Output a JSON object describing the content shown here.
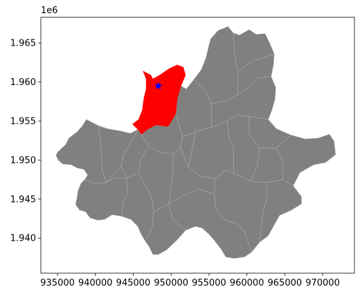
{
  "chart_data": {
    "type": "choropleth-map",
    "title": "",
    "xlabel": "",
    "ylabel": "",
    "y_offset_label": "1e6",
    "xlim": [
      932800,
      974200
    ],
    "ylim": [
      1935500,
      1968300
    ],
    "x_ticks": [
      935000,
      940000,
      945000,
      950000,
      955000,
      960000,
      965000,
      970000
    ],
    "y_ticks": [
      1.94,
      1.945,
      1.95,
      1.955,
      1.96,
      1.965
    ],
    "x_tick_labels": [
      "935000",
      "940000",
      "945000",
      "950000",
      "955000",
      "960000",
      "965000",
      "970000"
    ],
    "y_tick_labels": [
      "1.940",
      "1.945",
      "1.950",
      "1.955",
      "1.960",
      "1.965"
    ],
    "grid": false,
    "legend": "none",
    "base_color": "#808080",
    "highlight_color": "#ff0000",
    "marker_color": "#0000ff",
    "marker": {
      "shape": "star",
      "x": 948300,
      "y": 1959500
    },
    "highlighted_region": [
      [
        947600,
        1960400
      ],
      [
        948500,
        1960900
      ],
      [
        949700,
        1961700
      ],
      [
        950800,
        1962200
      ],
      [
        951600,
        1961900
      ],
      [
        951900,
        1960900
      ],
      [
        951300,
        1959500
      ],
      [
        950800,
        1957800
      ],
      [
        950600,
        1955900
      ],
      [
        949600,
        1954300
      ],
      [
        948000,
        1954500
      ],
      [
        946800,
        1953900
      ],
      [
        946100,
        1953300
      ],
      [
        945600,
        1953900
      ],
      [
        944900,
        1954600
      ],
      [
        945700,
        1955200
      ],
      [
        946200,
        1956400
      ],
      [
        946400,
        1957900
      ],
      [
        946700,
        1959100
      ],
      [
        946700,
        1960400
      ],
      [
        946300,
        1961400
      ],
      [
        947300,
        1960900
      ]
    ],
    "city_outline": [
      [
        935000,
        1951000
      ],
      [
        936100,
        1952000
      ],
      [
        936500,
        1952800
      ],
      [
        937600,
        1953600
      ],
      [
        938300,
        1954400
      ],
      [
        938800,
        1955200
      ],
      [
        939400,
        1954900
      ],
      [
        940400,
        1954400
      ],
      [
        941600,
        1954000
      ],
      [
        943400,
        1953700
      ],
      [
        944600,
        1953400
      ],
      [
        945600,
        1953900
      ],
      [
        946100,
        1953300
      ],
      [
        946800,
        1953900
      ],
      [
        948000,
        1954500
      ],
      [
        949600,
        1954300
      ],
      [
        950600,
        1955900
      ],
      [
        950800,
        1957800
      ],
      [
        951300,
        1959500
      ],
      [
        952000,
        1959100
      ],
      [
        953000,
        1960300
      ],
      [
        954000,
        1961600
      ],
      [
        954600,
        1963100
      ],
      [
        955200,
        1965500
      ],
      [
        956200,
        1966600
      ],
      [
        957500,
        1967100
      ],
      [
        958200,
        1966300
      ],
      [
        959000,
        1966000
      ],
      [
        960300,
        1966700
      ],
      [
        961200,
        1966100
      ],
      [
        962400,
        1966200
      ],
      [
        963000,
        1965000
      ],
      [
        963600,
        1963600
      ],
      [
        963500,
        1962200
      ],
      [
        963200,
        1960700
      ],
      [
        963800,
        1959300
      ],
      [
        963700,
        1957800
      ],
      [
        963300,
        1956400
      ],
      [
        962800,
        1955200
      ],
      [
        963900,
        1954000
      ],
      [
        965800,
        1953200
      ],
      [
        967700,
        1952700
      ],
      [
        969400,
        1952800
      ],
      [
        970900,
        1953300
      ],
      [
        971500,
        1952400
      ],
      [
        971700,
        1950700
      ],
      [
        970400,
        1949700
      ],
      [
        968800,
        1949400
      ],
      [
        967000,
        1948400
      ],
      [
        966100,
        1946700
      ],
      [
        967200,
        1945300
      ],
      [
        967200,
        1944400
      ],
      [
        965900,
        1943600
      ],
      [
        964300,
        1942900
      ],
      [
        963600,
        1941700
      ],
      [
        962800,
        1940300
      ],
      [
        961700,
        1939500
      ],
      [
        960600,
        1938200
      ],
      [
        959700,
        1937600
      ],
      [
        958300,
        1937400
      ],
      [
        957200,
        1937600
      ],
      [
        956600,
        1938600
      ],
      [
        955700,
        1939700
      ],
      [
        955000,
        1940500
      ],
      [
        954100,
        1941300
      ],
      [
        953200,
        1941500
      ],
      [
        951900,
        1941000
      ],
      [
        950800,
        1939800
      ],
      [
        949400,
        1938500
      ],
      [
        948300,
        1937900
      ],
      [
        947600,
        1937900
      ],
      [
        947100,
        1938900
      ],
      [
        946600,
        1939600
      ],
      [
        946000,
        1940600
      ],
      [
        945600,
        1941500
      ],
      [
        944700,
        1942400
      ],
      [
        943500,
        1942800
      ],
      [
        942200,
        1943000
      ],
      [
        941200,
        1942400
      ],
      [
        940300,
        1942300
      ],
      [
        939300,
        1942600
      ],
      [
        938700,
        1943400
      ],
      [
        937900,
        1943600
      ],
      [
        937400,
        1944300
      ],
      [
        937600,
        1945300
      ],
      [
        937700,
        1946000
      ],
      [
        938100,
        1947000
      ],
      [
        938600,
        1947500
      ],
      [
        939000,
        1948100
      ],
      [
        938500,
        1948800
      ],
      [
        937600,
        1949000
      ],
      [
        936800,
        1949400
      ],
      [
        935700,
        1949500
      ],
      [
        935100,
        1950000
      ],
      [
        934800,
        1950600
      ]
    ],
    "district_lines": [
      [
        [
          938600,
          1947500
        ],
        [
          939900,
          1947000
        ],
        [
          941400,
          1947100
        ],
        [
          942600,
          1947700
        ],
        [
          944100,
          1947700
        ],
        [
          945700,
          1948300
        ]
      ],
      [
        [
          940400,
          1954400
        ],
        [
          940700,
          1952600
        ],
        [
          940800,
          1950500
        ],
        [
          940900,
          1948700
        ],
        [
          941400,
          1947100
        ]
      ],
      [
        [
          945600,
          1953900
        ],
        [
          944700,
          1952300
        ],
        [
          943700,
          1950700
        ],
        [
          943400,
          1949200
        ],
        [
          944100,
          1947700
        ]
      ],
      [
        [
          943500,
          1942800
        ],
        [
          943700,
          1944700
        ],
        [
          944300,
          1945800
        ],
        [
          944100,
          1947700
        ]
      ],
      [
        [
          946100,
          1953300
        ],
        [
          947000,
          1951800
        ],
        [
          948600,
          1951000
        ],
        [
          950300,
          1950800
        ],
        [
          951200,
          1951600
        ],
        [
          951500,
          1953000
        ],
        [
          950600,
          1955900
        ]
      ],
      [
        [
          946600,
          1939600
        ],
        [
          947500,
          1941400
        ],
        [
          947700,
          1943400
        ],
        [
          947400,
          1945300
        ],
        [
          945700,
          1948300
        ],
        [
          946000,
          1950000
        ],
        [
          947000,
          1951800
        ]
      ],
      [
        [
          951200,
          1951600
        ],
        [
          952300,
          1949100
        ],
        [
          953800,
          1948000
        ],
        [
          955800,
          1947600
        ],
        [
          957200,
          1948700
        ],
        [
          958300,
          1948300
        ]
      ],
      [
        [
          955800,
          1947600
        ],
        [
          955700,
          1945600
        ],
        [
          956000,
          1943400
        ],
        [
          957200,
          1942300
        ],
        [
          958700,
          1941800
        ],
        [
          959700,
          1940800
        ],
        [
          960600,
          1938200
        ]
      ],
      [
        [
          947700,
          1943400
        ],
        [
          949700,
          1944400
        ],
        [
          951700,
          1945500
        ],
        [
          953700,
          1946300
        ],
        [
          955700,
          1945600
        ]
      ],
      [
        [
          950300,
          1950800
        ],
        [
          950200,
          1948300
        ],
        [
          949700,
          1944400
        ],
        [
          950200,
          1942400
        ],
        [
          951900,
          1941000
        ]
      ],
      [
        [
          951500,
          1953000
        ],
        [
          953200,
          1953600
        ],
        [
          955300,
          1954200
        ],
        [
          957400,
          1955000
        ],
        [
          958600,
          1955800
        ],
        [
          960300,
          1955600
        ],
        [
          962800,
          1955200
        ]
      ],
      [
        [
          953000,
          1960300
        ],
        [
          954600,
          1958800
        ],
        [
          955300,
          1957200
        ],
        [
          955300,
          1954200
        ]
      ],
      [
        [
          955300,
          1957200
        ],
        [
          957200,
          1957600
        ],
        [
          958800,
          1958400
        ],
        [
          960300,
          1959300
        ],
        [
          961300,
          1960500
        ],
        [
          963200,
          1960700
        ]
      ],
      [
        [
          958200,
          1966300
        ],
        [
          958400,
          1963400
        ],
        [
          958800,
          1961300
        ],
        [
          958800,
          1958400
        ]
      ],
      [
        [
          957400,
          1955000
        ],
        [
          957600,
          1953000
        ],
        [
          958200,
          1951500
        ],
        [
          958300,
          1948300
        ]
      ],
      [
        [
          960300,
          1955600
        ],
        [
          960300,
          1953200
        ],
        [
          961700,
          1951600
        ],
        [
          963900,
          1951500
        ],
        [
          965800,
          1953200
        ]
      ],
      [
        [
          958300,
          1948300
        ],
        [
          960500,
          1947300
        ],
        [
          962600,
          1947100
        ],
        [
          964700,
          1947500
        ],
        [
          966100,
          1946700
        ]
      ],
      [
        [
          961700,
          1951600
        ],
        [
          961400,
          1949300
        ],
        [
          960500,
          1947300
        ]
      ],
      [
        [
          963900,
          1951500
        ],
        [
          964800,
          1949800
        ],
        [
          964700,
          1947500
        ]
      ],
      [
        [
          962600,
          1947100
        ],
        [
          962600,
          1945000
        ],
        [
          962100,
          1943200
        ],
        [
          961700,
          1939500
        ]
      ],
      [
        [
          952300,
          1949100
        ],
        [
          952800,
          1951500
        ],
        [
          953200,
          1953600
        ]
      ],
      [
        [
          943400,
          1949200
        ],
        [
          941400,
          1947100
        ]
      ],
      [
        [
          958800,
          1961300
        ],
        [
          960700,
          1962700
        ],
        [
          962400,
          1963200
        ],
        [
          963600,
          1963600
        ]
      ]
    ]
  }
}
